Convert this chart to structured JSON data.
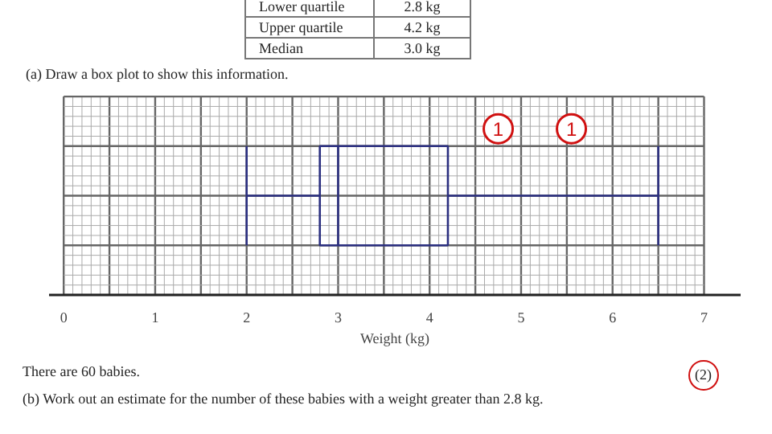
{
  "chart_data": {
    "type": "box",
    "orientation": "horizontal",
    "categories": [
      null
    ],
    "boxes": [
      {
        "low": 2.0,
        "q1": 2.8,
        "median": 3.0,
        "q3": 4.2,
        "high": 6.5
      }
    ],
    "color": "#2b2f80",
    "xlabel": "Weight (kg)",
    "xlim": [
      0,
      7
    ],
    "xticks": [
      0,
      1,
      2,
      3,
      4,
      5,
      6,
      7
    ],
    "grid": true,
    "annotations": [
      "Lower quartile",
      "2.8 kg",
      "Upper quartile",
      "4.2 kg",
      "Median",
      "3.0 kg",
      "(a) Draw a box plot to show this information.",
      "1",
      "1",
      "(2)",
      "There are 60 babies.",
      "(b) Work out an estimate for the number of these babies with a weight greater than 2.8 kg."
    ]
  }
}
